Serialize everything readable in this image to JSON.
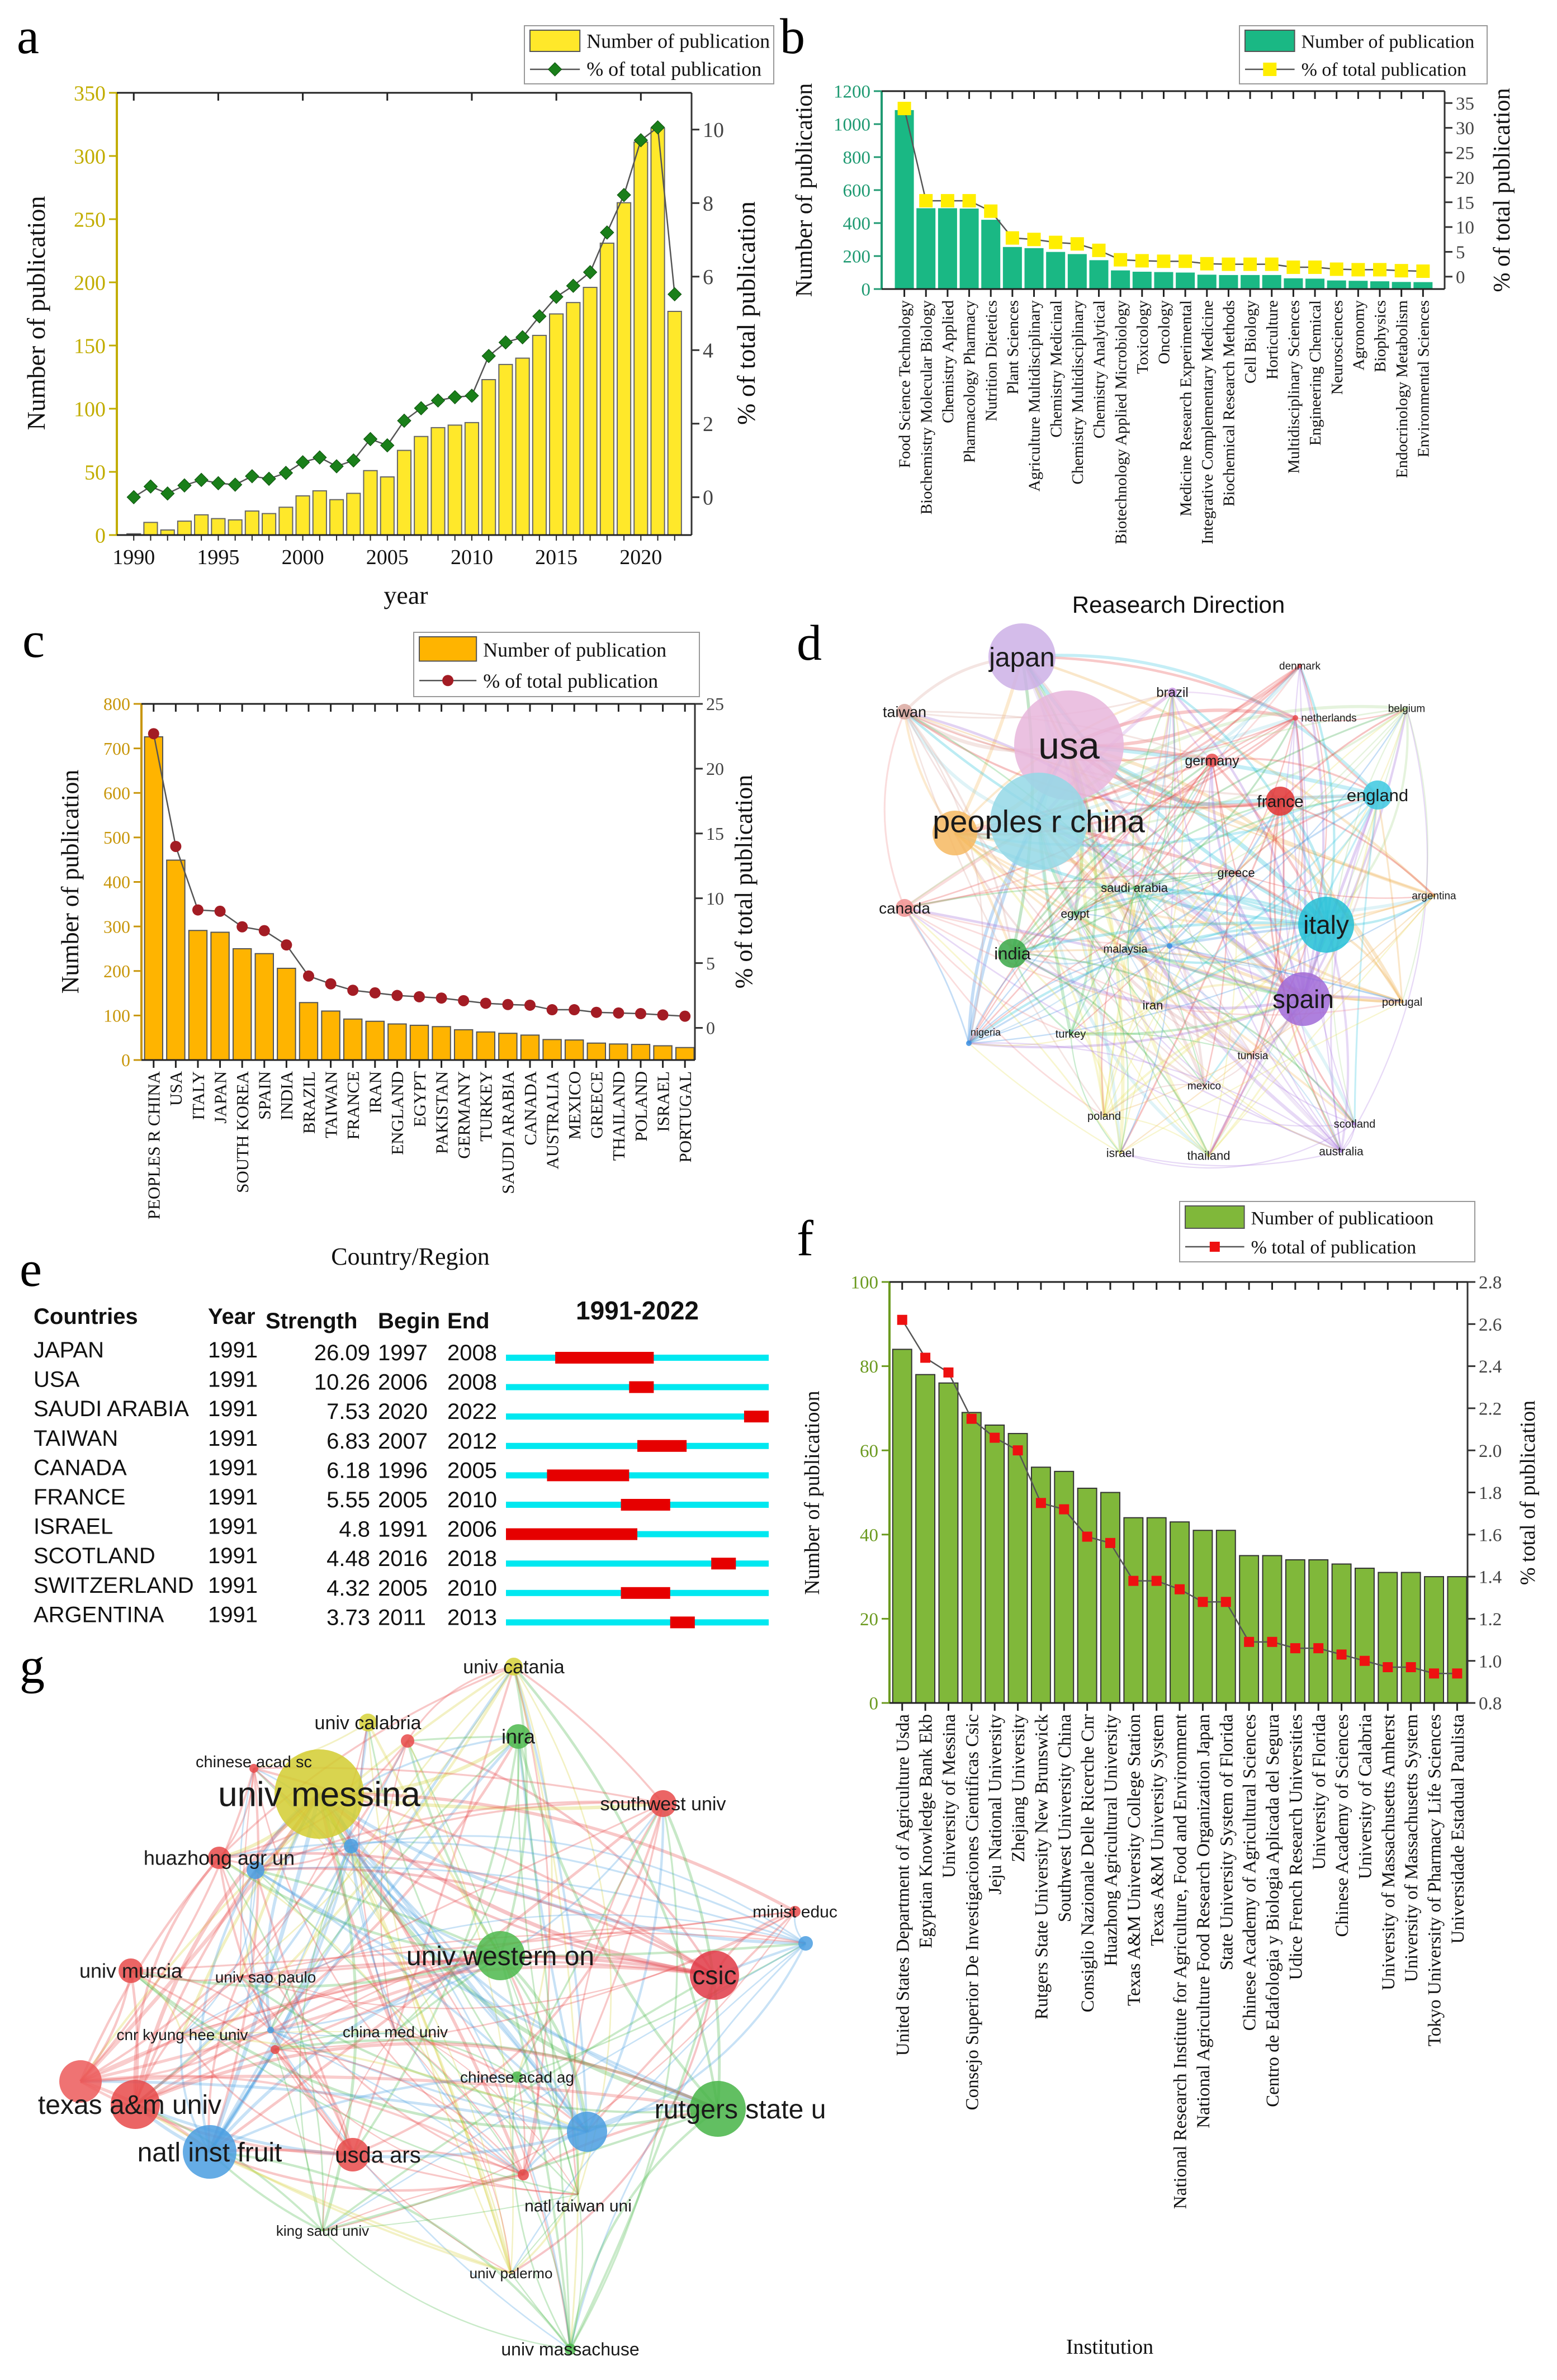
{
  "panels": {
    "a": "a",
    "b": "b",
    "c": "c",
    "d": "d",
    "e": "e",
    "f": "f",
    "g": "g"
  },
  "chart_data": [
    {
      "panel": "a",
      "type": "bar+line",
      "x": [
        1990,
        1991,
        1992,
        1993,
        1994,
        1995,
        1996,
        1997,
        1998,
        1999,
        2000,
        2001,
        2002,
        2003,
        2004,
        2005,
        2006,
        2007,
        2008,
        2009,
        2010,
        2011,
        2012,
        2013,
        2014,
        2015,
        2016,
        2017,
        2018,
        2019,
        2020,
        2021,
        2022
      ],
      "series": [
        {
          "name": "Number of publication",
          "type": "bar",
          "axis": "left",
          "color": "#ffe82a",
          "values": [
            1,
            10,
            4,
            11,
            16,
            13,
            12,
            19,
            17,
            22,
            31,
            35,
            28,
            33,
            51,
            46,
            67,
            78,
            85,
            87,
            89,
            123,
            135,
            140,
            158,
            175,
            184,
            196,
            231,
            263,
            311,
            322,
            177
          ]
        },
        {
          "name": "% of total publication",
          "type": "line",
          "axis": "right",
          "marker": "diamond",
          "color": "#1a7f1a",
          "values": [
            0.0,
            0.29,
            0.1,
            0.32,
            0.47,
            0.38,
            0.34,
            0.57,
            0.5,
            0.66,
            0.95,
            1.08,
            0.84,
            1.0,
            1.58,
            1.41,
            2.08,
            2.42,
            2.63,
            2.72,
            2.76,
            3.84,
            4.21,
            4.35,
            4.92,
            5.45,
            5.75,
            6.12,
            7.2,
            8.22,
            9.71,
            10.06,
            5.52
          ]
        }
      ],
      "xlabel": "year",
      "ylabel": "Number of publication",
      "y2label": "% of total publication",
      "xlim": [
        1989,
        2023
      ],
      "xticks": [
        "1990",
        "1995",
        "2000",
        "2005",
        "2010",
        "2015",
        "2020"
      ],
      "ylim": [
        0,
        350
      ],
      "yticks": [
        "0",
        "50",
        "100",
        "150",
        "200",
        "250",
        "300",
        "350"
      ],
      "y2lim": [
        -1.03,
        11
      ],
      "y2ticks": [
        "0",
        "2",
        "4",
        "6",
        "8",
        "10"
      ],
      "axis_color": "#c2ad00",
      "legend": "top-right"
    },
    {
      "panel": "b",
      "type": "bar+line",
      "categories": [
        "Food Science Technology",
        "Biochemistry Molecular Biology",
        "Chemistry Applied",
        "Pharmacology Pharmacy",
        "Nutrition Dietetics",
        "Plant Sciences",
        "Agriculture Multidisciplinary",
        "Chemistry Medicinal",
        "Chemistry Multidisciplinary",
        "Chemistry Analytical",
        "Biotechnology Applied Microbiology",
        "Toxicology",
        "Oncology",
        "Medicine Research Experimental",
        "Integrative Complementary Medicine",
        "Biochemical Research Methods",
        "Cell Biology",
        "Horticulture",
        "Multidisciplinary Sciences",
        "Engineering Chemical",
        "Neurosciences",
        "Agronomy",
        "Biophysics",
        "Endocrinology Metabolism",
        "Environmental Sciences"
      ],
      "series": [
        {
          "name": "Number of publication",
          "type": "bar",
          "axis": "left",
          "color": "#1ab884",
          "values": [
            1085,
            490,
            490,
            488,
            420,
            255,
            248,
            225,
            212,
            175,
            113,
            105,
            103,
            100,
            87,
            85,
            85,
            85,
            65,
            63,
            52,
            50,
            47,
            43,
            42
          ]
        },
        {
          "name": "% of total publication",
          "type": "line",
          "axis": "right",
          "marker": "square",
          "color": "#ffee00",
          "values": [
            33.9,
            15.3,
            15.3,
            15.3,
            13.2,
            7.8,
            7.5,
            6.9,
            6.6,
            5.3,
            3.4,
            3.2,
            3.1,
            3.1,
            2.6,
            2.5,
            2.5,
            2.5,
            1.9,
            1.9,
            1.5,
            1.4,
            1.4,
            1.2,
            1.1
          ]
        }
      ],
      "xlabel": "Reasearch Direction",
      "ylabel": "Number of publication",
      "y2label": "% of total publication",
      "ylim": [
        0,
        1200
      ],
      "yticks": [
        "0",
        "200",
        "400",
        "600",
        "800",
        "1000",
        "1200"
      ],
      "y2lim": [
        -2.5,
        37.4
      ],
      "y2ticks": [
        "0",
        "5",
        "10",
        "15",
        "20",
        "25",
        "30",
        "35"
      ],
      "axis_color": "#1f9a72",
      "legend": "top-right"
    },
    {
      "panel": "c",
      "type": "bar+line",
      "categories": [
        "PEOPLES R CHINA",
        "USA",
        "ITALY",
        "JAPAN",
        "SOUTH KOREA",
        "SPAIN",
        "INDIA",
        "BRAZIL",
        "TAIWAN",
        "FRANCE",
        "IRAN",
        "ENGLAND",
        "EGYPT",
        "PAKISTAN",
        "GERMANY",
        "TURKEY",
        "SAUDI ARABIA",
        "CANADA",
        "AUSTRALIA",
        "MEXICO",
        "GREECE",
        "THAILAND",
        "POLAND",
        "ISRAEL",
        "PORTUGAL"
      ],
      "series": [
        {
          "name": "Number of publication",
          "type": "bar",
          "axis": "left",
          "color": "#ffb400",
          "values": [
            726,
            449,
            291,
            287,
            250,
            239,
            206,
            129,
            110,
            92,
            87,
            81,
            78,
            75,
            68,
            63,
            60,
            56,
            46,
            45,
            38,
            36,
            35,
            32,
            28
          ]
        },
        {
          "name": "% of total publication",
          "type": "line",
          "axis": "right",
          "marker": "circle",
          "color": "#a31c24",
          "values": [
            22.7,
            14.0,
            9.1,
            9.0,
            7.8,
            7.5,
            6.4,
            4.0,
            3.4,
            2.9,
            2.7,
            2.5,
            2.4,
            2.3,
            2.1,
            1.9,
            1.8,
            1.75,
            1.4,
            1.4,
            1.2,
            1.15,
            1.1,
            1.0,
            0.9
          ]
        }
      ],
      "xlabel": "Country/Region",
      "ylabel": "Number of publication",
      "y2label": "% of total publication",
      "ylim": [
        0,
        800
      ],
      "yticks": [
        "0",
        "100",
        "200",
        "300",
        "400",
        "500",
        "600",
        "700",
        "800"
      ],
      "y2lim": [
        -2.48,
        25
      ],
      "y2ticks": [
        "0",
        "5",
        "10",
        "15",
        "20",
        "25"
      ],
      "axis_color": "#c8960a",
      "legend": "top-right"
    },
    {
      "panel": "f",
      "type": "bar+line",
      "categories": [
        "United States Department of Agriculture Usda",
        "Egyptian Knowledge Bank Ekb",
        "University of Messina",
        "Consejo Superior De Investigaciones Cientificas Csic",
        "Jeju National University",
        "Zhejiang University",
        "Rutgers State University New Brunswick",
        "Southwest University China",
        "Consiglio Nazionale Delle Ricerche Cnr",
        "Huazhong Agricultural University",
        "Texas A&M University College Station",
        "Texas A&M University System",
        "National Research Institute for Agriculture, Food and Environment",
        "National Agriculture Food Research Organization Japan",
        "State University System of Florida",
        "Chinese Academy of Agricultural Sciences",
        "Centro de Edafologia y Biologia Aplicada del Segura",
        "Udice French Research Universities",
        "University of Florida",
        "Chinese Academy of Sciences",
        "University of Calabria",
        "University of Massachusetts Amherst",
        "University of Massachusetts System",
        "Tokyo University of Pharmacy Life Sciences",
        "Universidade Estadual Paulista"
      ],
      "series": [
        {
          "name": "Number of publicatioon",
          "type": "bar",
          "axis": "left",
          "color": "#80b83a",
          "values": [
            84,
            78,
            76,
            69,
            66,
            64,
            56,
            55,
            51,
            50,
            44,
            44,
            43,
            41,
            41,
            35,
            35,
            34,
            34,
            33,
            32,
            31,
            31,
            30,
            30
          ]
        },
        {
          "name": "% total of publication",
          "type": "line",
          "axis": "right",
          "marker": "square",
          "color": "#ee1111",
          "values": [
            2.62,
            2.44,
            2.37,
            2.15,
            2.06,
            2.0,
            1.75,
            1.72,
            1.59,
            1.56,
            1.38,
            1.38,
            1.34,
            1.28,
            1.28,
            1.09,
            1.09,
            1.06,
            1.06,
            1.03,
            1.0,
            0.97,
            0.97,
            0.94,
            0.94
          ]
        }
      ],
      "xlabel": "Institution",
      "ylabel": "Number of publicatioon",
      "y2label": "% total of publication",
      "ylim": [
        0,
        100
      ],
      "yticks": [
        "0",
        "20",
        "40",
        "60",
        "80",
        "100"
      ],
      "y2lim": [
        0.8,
        2.8
      ],
      "y2ticks": [
        "0.8",
        "1.0",
        "1.2",
        "1.4",
        "1.6",
        "1.8",
        "2.0",
        "2.2",
        "2.4",
        "2.6",
        "2.8"
      ],
      "axis_color": "#6b9a1f",
      "legend": "top-right"
    }
  ],
  "burst_table": {
    "title": "1991-2022",
    "range": [
      1991,
      2022
    ],
    "headers": [
      "Countries",
      "Year",
      "Strength",
      "Begin",
      "End"
    ],
    "rows": [
      [
        "JAPAN",
        "1991",
        "26.09",
        "1997",
        "2008"
      ],
      [
        "USA",
        "1991",
        "10.26",
        "2006",
        "2008"
      ],
      [
        "SAUDI ARABIA",
        "1991",
        "7.53",
        "2020",
        "2022"
      ],
      [
        "TAIWAN",
        "1991",
        "6.83",
        "2007",
        "2012"
      ],
      [
        "CANADA",
        "1991",
        "6.18",
        "1996",
        "2005"
      ],
      [
        "FRANCE",
        "1991",
        "5.55",
        "2005",
        "2010"
      ],
      [
        "ISRAEL",
        "1991",
        "4.8",
        "1991",
        "2006"
      ],
      [
        "SCOTLAND",
        "1991",
        "4.48",
        "2016",
        "2018"
      ],
      [
        "SWITZERLAND",
        "1991",
        "4.32",
        "2005",
        "2010"
      ],
      [
        "ARGENTINA",
        "1991",
        "3.73",
        "2011",
        "2013"
      ]
    ],
    "colors": {
      "timeline": "#00e8f0",
      "burst": "#e60000"
    }
  },
  "network_d": {
    "nodes": [
      "japan",
      "usa",
      "peoples r china",
      "",
      "taiwan",
      "brazil",
      "denmark",
      "netherlands",
      "belgium",
      "germany",
      "france",
      "england",
      "greece",
      "saudi arabia",
      "argentina",
      "canada",
      "egypt",
      "italy",
      "india",
      "malaysia",
      "",
      "spain",
      "iran",
      "portugal",
      "nigeria",
      "turkey",
      "tunisia",
      "mexico",
      "poland",
      "scotland",
      "israel",
      "thailand",
      "australia"
    ],
    "colors": [
      "#cdb0e6",
      "#e8b6dc",
      "#94d8e6",
      "#f6b860",
      "#d9a8a0",
      "#c792e0",
      "#e84c4c",
      "#e84c4c",
      "#a8d890",
      "#e84c4c",
      "#e03434",
      "#3cc8e0",
      "#e84c4c",
      "#4cc060",
      "#f0b050",
      "#f09090",
      "#4cc060",
      "#22bfd6",
      "#38a848",
      "#6aaee0",
      "#3a8ee0",
      "#a06ad8",
      "#e8d860",
      "#f0b050",
      "#3a8ee0",
      "#4cc060",
      "#d8a0a0",
      "#d8a0a0",
      "#e8e060",
      "#b080e0",
      "#e8e060",
      "#e8e060",
      "#b080e0"
    ]
  },
  "network_g": {
    "nodes": [
      "univ catania",
      "univ calabria",
      "",
      "inra",
      "chinese acad sc",
      "univ messina",
      "",
      "huazhong agr un",
      "",
      "southwest univ",
      "minist educ",
      "",
      "univ western on",
      "csic",
      "univ murcia",
      "univ sao paulo",
      "cnr kyung hee univ",
      "",
      "",
      "china med univ",
      "chinese acad ag",
      "",
      "texas a&m univ",
      "rutgers state u",
      "",
      "natl inst fruit",
      "usda ars",
      "",
      "natl taiwan uni",
      "king saud univ",
      "univ palermo",
      "univ massachuse"
    ],
    "colors": [
      "#d6d23a",
      "#d6d23a",
      "#e84a4a",
      "#4cb84c",
      "#e84a4a",
      "#d2cc30",
      "#4a9ee0",
      "#e84a4a",
      "#4a9ee0",
      "#e84a4a",
      "#e84a4a",
      "#4a9ee0",
      "#4cb84c",
      "#e03a46",
      "#e84a4a",
      "#e84a4a",
      "#d6d23a",
      "#4a9ee0",
      "#e84a4a",
      "#e84a4a",
      "#4cb84c",
      "#ec5a5a",
      "#e84a4a",
      "#46b446",
      "#4a9ee0",
      "#4a9ee0",
      "#e84a4a",
      "#e84a4a",
      "#4cb84c",
      "#4cb84c",
      "#d6d23a",
      "#4cb84c"
    ]
  }
}
